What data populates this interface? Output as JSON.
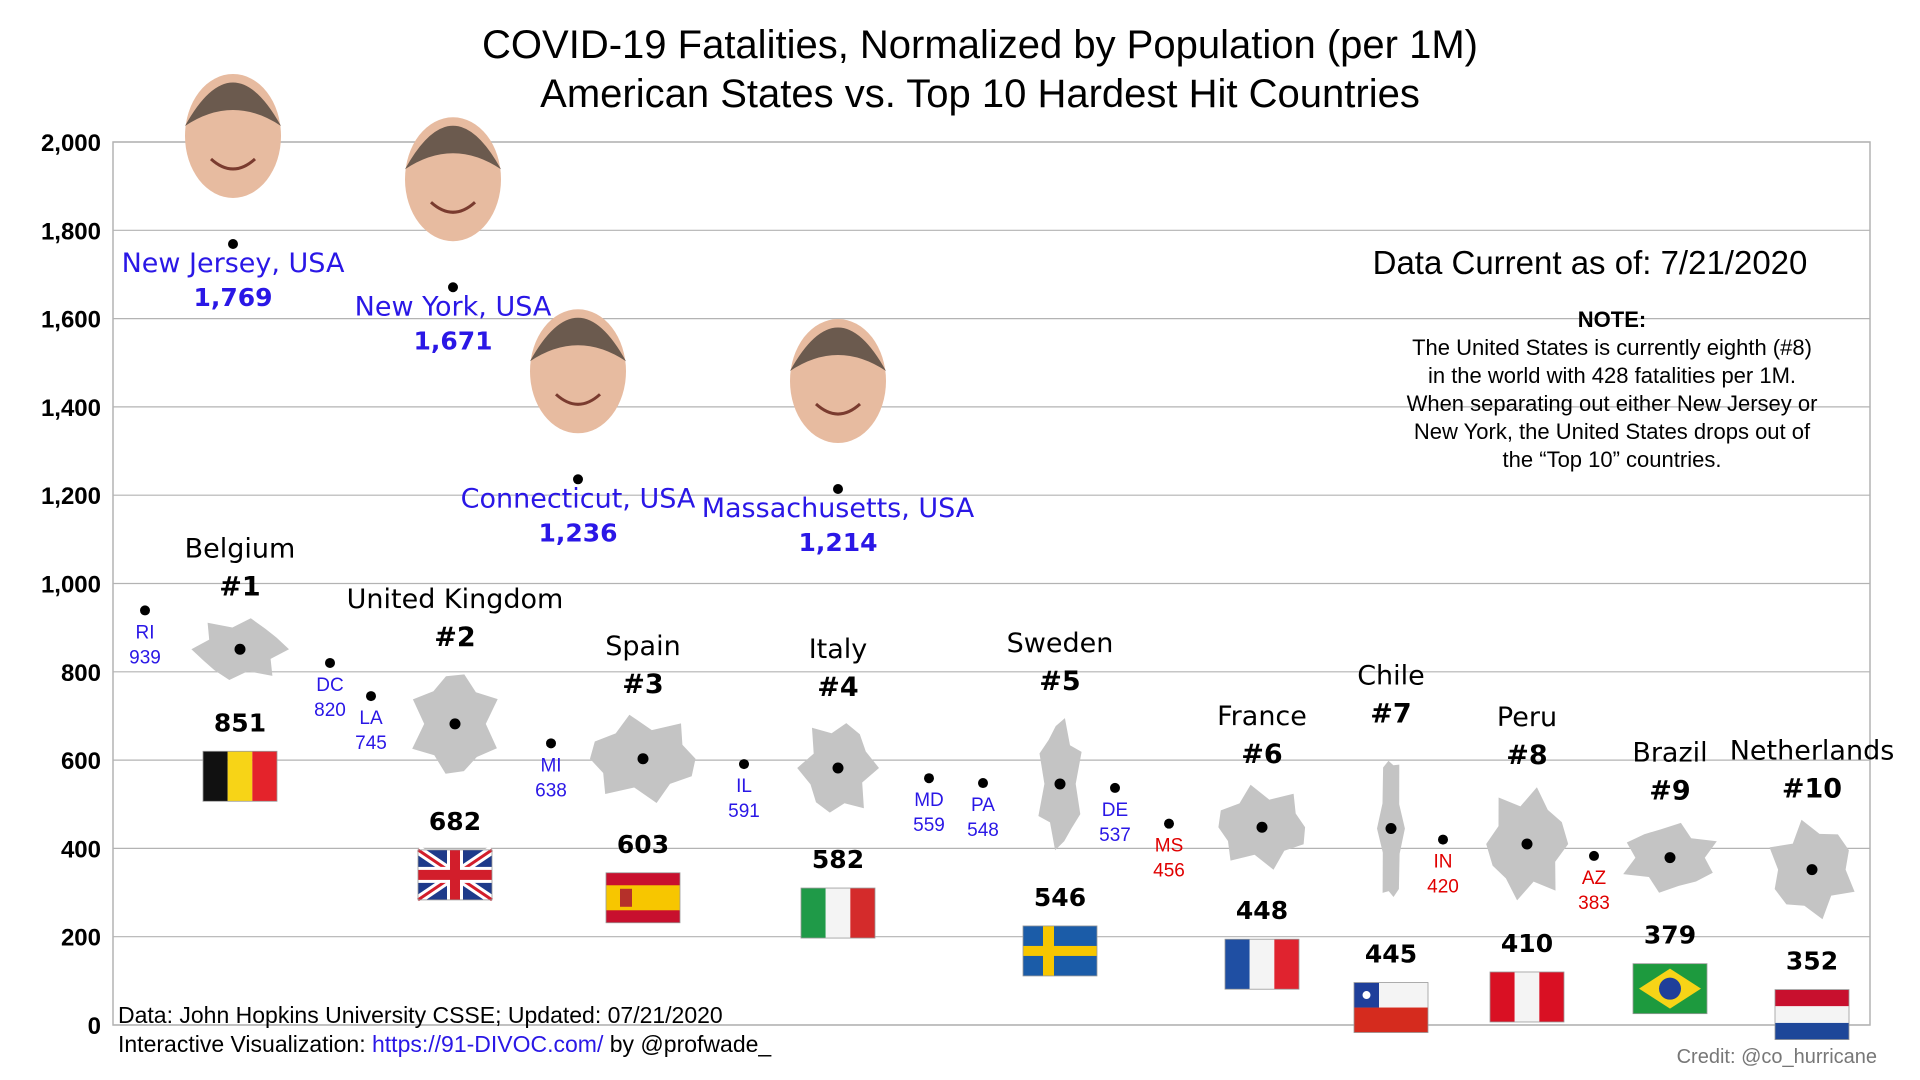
{
  "chart_data": {
    "type": "scatter",
    "title": "COVID-19  Fatalities, Normalized by Population (per 1M)",
    "subtitle": "American States vs. Top 10 Hardest Hit Countries",
    "ylim": [
      0,
      2000
    ],
    "yticks": [
      "0",
      "200",
      "400",
      "600",
      "800",
      "1,000",
      "1,200",
      "1,400",
      "1,600",
      "1,800",
      "2,000"
    ],
    "grid": true,
    "countries": [
      {
        "name": "Belgium",
        "rank": "#1",
        "value": 851,
        "label": "851"
      },
      {
        "name": "United Kingdom",
        "rank": "#2",
        "value": 682,
        "label": "682"
      },
      {
        "name": "Spain",
        "rank": "#3",
        "value": 603,
        "label": "603"
      },
      {
        "name": "Italy",
        "rank": "#4",
        "value": 582,
        "label": "582"
      },
      {
        "name": "Sweden",
        "rank": "#5",
        "value": 546,
        "label": "546"
      },
      {
        "name": "France",
        "rank": "#6",
        "value": 448,
        "label": "448"
      },
      {
        "name": "Chile",
        "rank": "#7",
        "value": 445,
        "label": "445"
      },
      {
        "name": "Peru",
        "rank": "#8",
        "value": 410,
        "label": "410"
      },
      {
        "name": "Brazil",
        "rank": "#9",
        "value": 379,
        "label": "379"
      },
      {
        "name": "Netherlands",
        "rank": "#10",
        "value": 352,
        "label": "352"
      }
    ],
    "big_states": [
      {
        "name": "New Jersey, USA",
        "value": 1769,
        "label": "1,769"
      },
      {
        "name": "New York, USA",
        "value": 1671,
        "label": "1,671"
      },
      {
        "name": "Connecticut, USA",
        "value": 1236,
        "label": "1,236"
      },
      {
        "name": "Massachusetts, USA",
        "value": 1214,
        "label": "1,214"
      }
    ],
    "small_states": [
      {
        "name": "RI",
        "value": 939,
        "label": "939",
        "color": "#2a17e6"
      },
      {
        "name": "DC",
        "value": 820,
        "label": "820",
        "color": "#2a17e6"
      },
      {
        "name": "LA",
        "value": 745,
        "label": "745",
        "color": "#2a17e6"
      },
      {
        "name": "MI",
        "value": 638,
        "label": "638",
        "color": "#2a17e6"
      },
      {
        "name": "IL",
        "value": 591,
        "label": "591",
        "color": "#2a17e6"
      },
      {
        "name": "MD",
        "value": 559,
        "label": "559",
        "color": "#2a17e6"
      },
      {
        "name": "PA",
        "value": 548,
        "label": "548",
        "color": "#2a17e6"
      },
      {
        "name": "DE",
        "value": 537,
        "label": "537",
        "color": "#2a17e6"
      },
      {
        "name": "MS",
        "value": 456,
        "label": "456",
        "color": "#e00000"
      },
      {
        "name": "IN",
        "value": 420,
        "label": "420",
        "color": "#e00000"
      },
      {
        "name": "AZ",
        "value": 383,
        "label": "383",
        "color": "#e00000"
      }
    ]
  },
  "annotations": {
    "updated": "Data Current as of: 7/21/2020",
    "note_heading": "NOTE:",
    "note_lines": [
      "The United States is currently eighth (#8)",
      "in the world with 428 fatalities per 1M.",
      "When separating out either New Jersey or",
      "New York, the United States drops out of",
      "the “Top 10” countries."
    ]
  },
  "footer": {
    "source": "Data: John Hopkins University CSSE; Updated: 07/21/2020",
    "viz_prefix": "Interactive Visualization: ",
    "viz_link": "https://91-DIVOC.com/",
    "viz_suffix": " by @profwade_",
    "credit": "Credit: @co_hurricane"
  },
  "colors": {
    "state_blue": "#2a17e6",
    "state_red": "#e00000",
    "grid": "#b3b3b3",
    "map_gray": "#c4c4c4"
  }
}
